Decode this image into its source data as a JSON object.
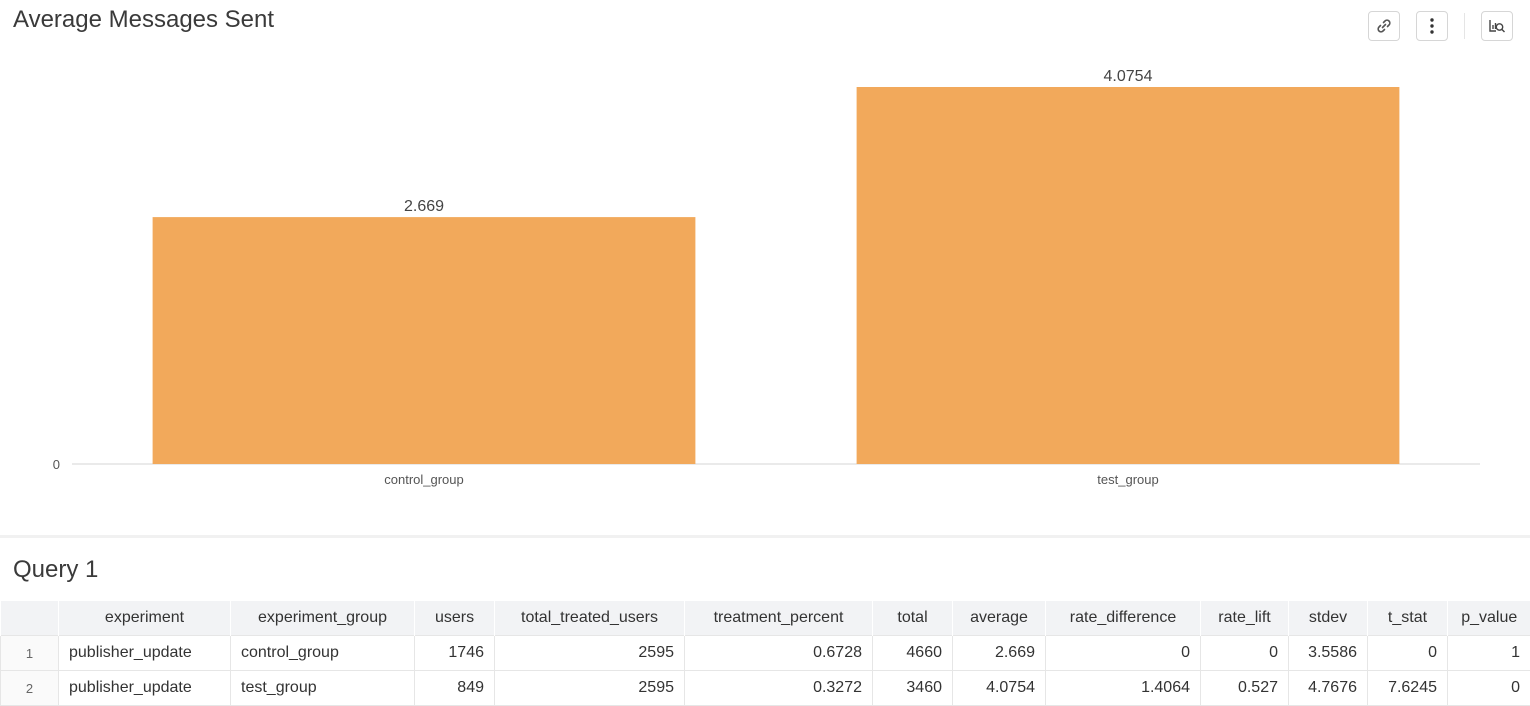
{
  "chart_data": {
    "type": "bar",
    "title": "Average Messages Sent",
    "categories": [
      "control_group",
      "test_group"
    ],
    "values": [
      2.669,
      4.0754
    ],
    "data_labels": [
      "2.669",
      "4.0754"
    ],
    "y_tick_labels": [
      "0"
    ],
    "ylim": [
      0,
      4.0754
    ],
    "bar_color": "#f2a95b",
    "grid": false,
    "legend": "none"
  },
  "toolbar": {
    "buttons": [
      "link-icon",
      "more-vertical-icon",
      "inspect-query-icon"
    ]
  },
  "query": {
    "title": "Query 1",
    "columns": [
      "experiment",
      "experiment_group",
      "users",
      "total_treated_users",
      "treatment_percent",
      "total",
      "average",
      "rate_difference",
      "rate_lift",
      "stdev",
      "t_stat",
      "p_value"
    ],
    "rows": [
      {
        "index": "1",
        "cells": [
          "publisher_update",
          "control_group",
          "1746",
          "2595",
          "0.6728",
          "4660",
          "2.669",
          "0",
          "0",
          "3.5586",
          "0",
          "1"
        ]
      },
      {
        "index": "2",
        "cells": [
          "publisher_update",
          "test_group",
          "849",
          "2595",
          "0.3272",
          "3460",
          "4.0754",
          "1.4064",
          "0.527",
          "4.7676",
          "7.6245",
          "0"
        ]
      }
    ]
  }
}
